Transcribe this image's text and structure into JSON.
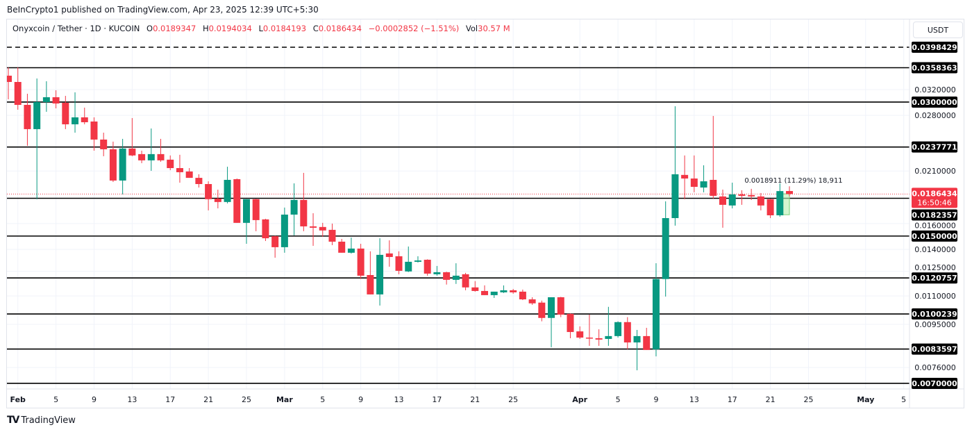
{
  "publish_line": "BeInCrypto1 published on TradingView.com, Apr 23, 2025 12:39 UTC+5:30",
  "legend": {
    "symbol": "Onyxcoin / Tether · 1D · KUCOIN",
    "open_label": "O",
    "open": "0.0189347",
    "high_label": "H",
    "high": "0.0194034",
    "low_label": "L",
    "low": "0.0184193",
    "close_label": "C",
    "close": "0.0186434",
    "change": "−0.0002852 (−1.51%)",
    "vol_label": "Vol",
    "vol": "30.57 M"
  },
  "currency_button": "USDT",
  "brand": {
    "logo": "TV",
    "name": "TradingView"
  },
  "colors": {
    "up": "#089981",
    "down": "#f23645",
    "level": "#000000",
    "measure": "#b7f0b1"
  },
  "chart_data": {
    "type": "candlestick",
    "title": "",
    "y_scale": "log",
    "ylim": [
      0.007,
      0.0398429
    ],
    "grid": true,
    "price_ticks": [
      "0.0320000",
      "0.0280000",
      "0.0210000",
      "0.0160000",
      "0.0140000",
      "0.0125000",
      "0.0110000",
      "0.0095000",
      "0.0076000"
    ],
    "levels": [
      {
        "value": "0.0398429",
        "style": "dashed"
      },
      {
        "value": "0.0358363",
        "style": "solid"
      },
      {
        "value": "0.0300000",
        "style": "solid"
      },
      {
        "value": "0.0237771",
        "style": "solid"
      },
      {
        "value": "0.0182357",
        "style": "solid"
      },
      {
        "value": "0.0150000",
        "style": "solid"
      },
      {
        "value": "0.0120757",
        "style": "solid"
      },
      {
        "value": "0.0100239",
        "style": "solid"
      },
      {
        "value": "0.0083597",
        "style": "solid"
      },
      {
        "value": "0.0070000",
        "style": "solid"
      }
    ],
    "current_price": {
      "value": "0.0186434",
      "countdown": "16:50:46"
    },
    "measure": {
      "from": 0.01675,
      "to": 0.018664,
      "date_from": "2025-04-22",
      "date_to": "2025-04-23",
      "text": "0.0018911 (11.29%) 18,911"
    },
    "x_ticks": [
      {
        "label": "Feb",
        "date": "2025-02-01",
        "bold": true
      },
      {
        "label": "5",
        "date": "2025-02-05"
      },
      {
        "label": "9",
        "date": "2025-02-09"
      },
      {
        "label": "13",
        "date": "2025-02-13"
      },
      {
        "label": "17",
        "date": "2025-02-17"
      },
      {
        "label": "21",
        "date": "2025-02-21"
      },
      {
        "label": "25",
        "date": "2025-02-25"
      },
      {
        "label": "Mar",
        "date": "2025-03-01",
        "bold": true
      },
      {
        "label": "5",
        "date": "2025-03-05"
      },
      {
        "label": "9",
        "date": "2025-03-09"
      },
      {
        "label": "13",
        "date": "2025-03-13"
      },
      {
        "label": "17",
        "date": "2025-03-17"
      },
      {
        "label": "21",
        "date": "2025-03-21"
      },
      {
        "label": "25",
        "date": "2025-03-25"
      },
      {
        "label": "Apr",
        "date": "2025-04-01",
        "bold": true
      },
      {
        "label": "5",
        "date": "2025-04-05"
      },
      {
        "label": "9",
        "date": "2025-04-09"
      },
      {
        "label": "13",
        "date": "2025-04-13"
      },
      {
        "label": "17",
        "date": "2025-04-17"
      },
      {
        "label": "21",
        "date": "2025-04-21"
      },
      {
        "label": "25",
        "date": "2025-04-25"
      },
      {
        "label": "May",
        "date": "2025-05-01",
        "bold": true
      },
      {
        "label": "5",
        "date": "2025-05-05"
      }
    ],
    "columns": [
      "date",
      "open",
      "high",
      "low",
      "close"
    ],
    "candles": [
      [
        "2025-01-31",
        0.03439,
        0.0359,
        0.03043,
        0.03329
      ],
      [
        "2025-02-01",
        0.03329,
        0.0359,
        0.02884,
        0.02957
      ],
      [
        "2025-02-02",
        0.02957,
        0.03132,
        0.02393,
        0.02608
      ],
      [
        "2025-02-03",
        0.02608,
        0.0339,
        0.01815,
        0.03
      ],
      [
        "2025-02-04",
        0.03,
        0.03341,
        0.02853,
        0.03076
      ],
      [
        "2025-02-05",
        0.03076,
        0.03189,
        0.02904,
        0.02978
      ],
      [
        "2025-02-06",
        0.02989,
        0.03098,
        0.02608,
        0.02674
      ],
      [
        "2025-02-07",
        0.02674,
        0.03155,
        0.02561,
        0.02772
      ],
      [
        "2025-02-08",
        0.02772,
        0.02915,
        0.02674,
        0.02703
      ],
      [
        "2025-02-09",
        0.02713,
        0.02772,
        0.02333,
        0.02471
      ],
      [
        "2025-02-10",
        0.02471,
        0.02561,
        0.02267,
        0.0235
      ],
      [
        "2025-02-11",
        0.0235,
        0.02445,
        0.01984,
        0.01999
      ],
      [
        "2025-02-12",
        0.01999,
        0.0248,
        0.01861,
        0.02359
      ],
      [
        "2025-02-13",
        0.02359,
        0.02762,
        0.02267,
        0.02276
      ],
      [
        "2025-02-14",
        0.02292,
        0.02333,
        0.02187,
        0.02219
      ],
      [
        "2025-02-15",
        0.02219,
        0.02617,
        0.02102,
        0.02292
      ],
      [
        "2025-02-16",
        0.02292,
        0.0248,
        0.02203,
        0.02219
      ],
      [
        "2025-02-17",
        0.02227,
        0.02276,
        0.02109,
        0.02132
      ],
      [
        "2025-02-18",
        0.02132,
        0.02284,
        0.01977,
        0.02087
      ],
      [
        "2025-02-19",
        0.02095,
        0.02132,
        0.02027,
        0.02027
      ],
      [
        "2025-02-20",
        0.02027,
        0.02065,
        0.01928,
        0.01963
      ],
      [
        "2025-02-21",
        0.01963,
        0.01991,
        0.01713,
        0.01815
      ],
      [
        "2025-02-22",
        0.01821,
        0.01907,
        0.01731,
        0.01789
      ],
      [
        "2025-02-23",
        0.01789,
        0.02147,
        0.01776,
        0.02006
      ],
      [
        "2025-02-24",
        0.02013,
        0.0202,
        0.01606,
        0.01606
      ],
      [
        "2025-02-25",
        0.01606,
        0.01815,
        0.01441,
        0.01815
      ],
      [
        "2025-02-26",
        0.01815,
        0.0182,
        0.01538,
        0.01629
      ],
      [
        "2025-02-27",
        0.01635,
        0.0164,
        0.01462,
        0.01483
      ],
      [
        "2025-02-28",
        0.01499,
        0.01502,
        0.01341,
        0.01416
      ],
      [
        "2025-03-01",
        0.01416,
        0.01738,
        0.01376,
        0.01676
      ],
      [
        "2025-03-02",
        0.01676,
        0.0197,
        0.01505,
        0.01808
      ],
      [
        "2025-03-03",
        0.01808,
        0.0208,
        0.01538,
        0.01577
      ],
      [
        "2025-03-04",
        0.01577,
        0.01688,
        0.01426,
        0.01566
      ],
      [
        "2025-03-05",
        0.01572,
        0.01606,
        0.01494,
        0.01544
      ],
      [
        "2025-03-06",
        0.01549,
        0.016,
        0.01431,
        0.01457
      ],
      [
        "2025-03-07",
        0.01457,
        0.01478,
        0.01376,
        0.01376
      ],
      [
        "2025-03-08",
        0.01376,
        0.01488,
        0.0137,
        0.01406
      ],
      [
        "2025-03-09",
        0.01406,
        0.01441,
        0.01201,
        0.01222
      ],
      [
        "2025-03-10",
        0.01226,
        0.01386,
        0.01109,
        0.01109
      ],
      [
        "2025-03-11",
        0.01109,
        0.01483,
        0.01047,
        0.01361
      ],
      [
        "2025-03-12",
        0.01371,
        0.01467,
        0.0128,
        0.01346
      ],
      [
        "2025-03-13",
        0.01351,
        0.01386,
        0.01231,
        0.01253
      ],
      [
        "2025-03-14",
        0.01249,
        0.01421,
        0.01245,
        0.01313
      ],
      [
        "2025-03-15",
        0.01313,
        0.01351,
        0.01308,
        0.01322
      ],
      [
        "2025-03-16",
        0.01327,
        0.0133,
        0.01222,
        0.01235
      ],
      [
        "2025-03-17",
        0.01231,
        0.01285,
        0.01222,
        0.01244
      ],
      [
        "2025-03-18",
        0.01244,
        0.01247,
        0.01167,
        0.01196
      ],
      [
        "2025-03-19",
        0.01196,
        0.01303,
        0.01171,
        0.01222
      ],
      [
        "2025-03-20",
        0.01231,
        0.0124,
        0.01133,
        0.0115
      ],
      [
        "2025-03-21",
        0.0115,
        0.01188,
        0.01125,
        0.01129
      ],
      [
        "2025-03-22",
        0.01129,
        0.01162,
        0.01105,
        0.01105
      ],
      [
        "2025-03-23",
        0.01105,
        0.01125,
        0.01089,
        0.01125
      ],
      [
        "2025-03-24",
        0.01121,
        0.01162,
        0.01117,
        0.01133
      ],
      [
        "2025-03-25",
        0.01133,
        0.01141,
        0.01113,
        0.01121
      ],
      [
        "2025-03-26",
        0.01125,
        0.01137,
        0.01077,
        0.01081
      ],
      [
        "2025-03-27",
        0.01081,
        0.01093,
        0.01051,
        0.01059
      ],
      [
        "2025-03-28",
        0.01063,
        0.01074,
        0.00965,
        0.00982
      ],
      [
        "2025-03-29",
        0.00982,
        0.01093,
        0.00844,
        0.01093
      ],
      [
        "2025-03-30",
        0.01093,
        0.01095,
        0.00986,
        0.00999
      ],
      [
        "2025-03-31",
        0.01003,
        0.01005,
        0.00884,
        0.00913
      ],
      [
        "2025-04-01",
        0.00916,
        0.0094,
        0.00881,
        0.00887
      ],
      [
        "2025-04-02",
        0.00887,
        0.00999,
        0.0085,
        0.00884
      ],
      [
        "2025-04-03",
        0.00884,
        0.00926,
        0.0085,
        0.00878
      ],
      [
        "2025-04-04",
        0.00881,
        0.0104,
        0.0085,
        0.00894
      ],
      [
        "2025-04-05",
        0.00894,
        0.00965,
        0.00887,
        0.00961
      ],
      [
        "2025-04-06",
        0.00961,
        0.00986,
        0.00835,
        0.00865
      ],
      [
        "2025-04-07",
        0.00865,
        0.00923,
        0.00749,
        0.00894
      ],
      [
        "2025-04-08",
        0.00894,
        0.00933,
        0.00832,
        0.00832
      ],
      [
        "2025-04-09",
        0.00835,
        0.01303,
        0.00805,
        0.01201
      ],
      [
        "2025-04-10",
        0.01201,
        0.01795,
        0.01097,
        0.01646
      ],
      [
        "2025-04-11",
        0.01646,
        0.02936,
        0.01583,
        0.02065
      ],
      [
        "2025-04-12",
        0.02058,
        0.02276,
        0.01815,
        0.0202
      ],
      [
        "2025-04-13",
        0.0202,
        0.02276,
        0.01881,
        0.01935
      ],
      [
        "2025-04-14",
        0.01928,
        0.02163,
        0.01881,
        0.01991
      ],
      [
        "2025-04-15",
        0.02006,
        0.02792,
        0.01821,
        0.01847
      ],
      [
        "2025-04-16",
        0.01841,
        0.01907,
        0.01566,
        0.01763
      ],
      [
        "2025-04-17",
        0.01757,
        0.01977,
        0.01731,
        0.01861
      ],
      [
        "2025-04-18",
        0.01861,
        0.01901,
        0.01763,
        0.01847
      ],
      [
        "2025-04-19",
        0.01854,
        0.01915,
        0.01808,
        0.01841
      ],
      [
        "2025-04-20",
        0.01841,
        0.01874,
        0.01713,
        0.01757
      ],
      [
        "2025-04-21",
        0.01815,
        0.0182,
        0.01646,
        0.0167
      ],
      [
        "2025-04-22",
        0.0167,
        0.0197,
        0.01658,
        0.0189286
      ],
      [
        "2025-04-23",
        0.0189347,
        0.0194034,
        0.0184193,
        0.0186434
      ]
    ]
  }
}
